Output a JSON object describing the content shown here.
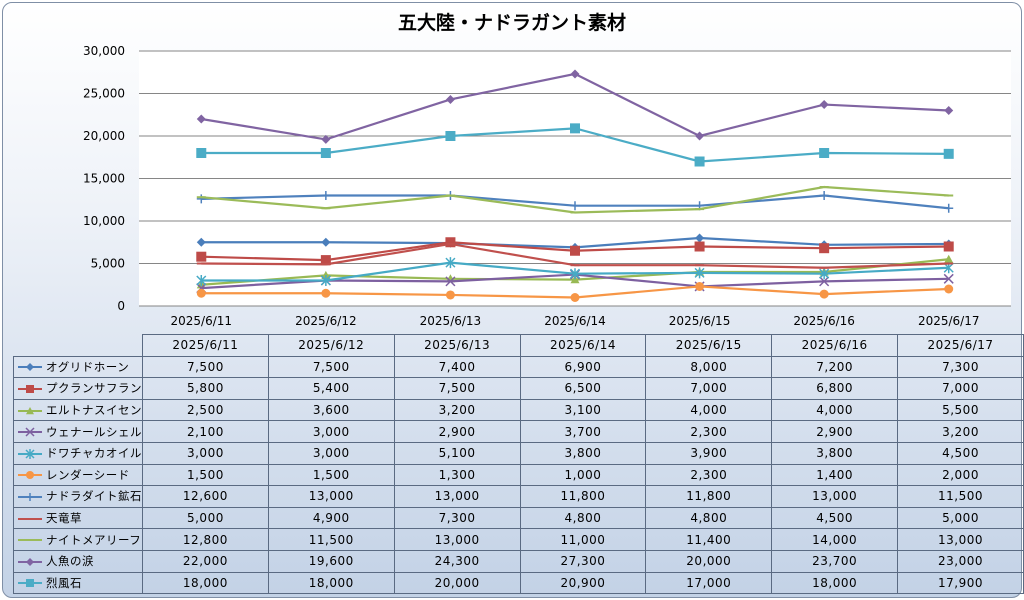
{
  "title": "五大陸・ナドラガント素材",
  "chart_data": {
    "type": "line",
    "title": "五大陸・ナドラガント素材",
    "categories": [
      "2025/6/11",
      "2025/6/12",
      "2025/6/13",
      "2025/6/14",
      "2025/6/15",
      "2025/6/16",
      "2025/6/17"
    ],
    "ylim": [
      0,
      30000
    ],
    "yticks": [
      "0",
      "5,000",
      "10,000",
      "15,000",
      "20,000",
      "25,000",
      "30,000"
    ],
    "grid": true,
    "legend": "data-table",
    "series": [
      {
        "name": "オグリドホーン",
        "color": "#4a7ebb",
        "marker": "diamond",
        "values": [
          7500,
          7500,
          7400,
          6900,
          8000,
          7200,
          7300
        ],
        "labels": [
          "7,500",
          "7,500",
          "7,400",
          "6,900",
          "8,000",
          "7,200",
          "7,300"
        ]
      },
      {
        "name": "プクランサフラン",
        "color": "#be4b48",
        "marker": "square",
        "values": [
          5800,
          5400,
          7500,
          6500,
          7000,
          6800,
          7000
        ],
        "labels": [
          "5,800",
          "5,400",
          "7,500",
          "6,500",
          "7,000",
          "6,800",
          "7,000"
        ]
      },
      {
        "name": "エルトナスイセン",
        "color": "#98b954",
        "marker": "triangle",
        "values": [
          2500,
          3600,
          3200,
          3100,
          4000,
          4000,
          5500
        ],
        "labels": [
          "2,500",
          "3,600",
          "3,200",
          "3,100",
          "4,000",
          "4,000",
          "5,500"
        ]
      },
      {
        "name": "ウェナールシェル",
        "color": "#7d60a0",
        "marker": "x",
        "values": [
          2100,
          3000,
          2900,
          3700,
          2300,
          2900,
          3200
        ],
        "labels": [
          "2,100",
          "3,000",
          "2,900",
          "3,700",
          "2,300",
          "2,900",
          "3,200"
        ]
      },
      {
        "name": "ドワチャカオイル",
        "color": "#46aac5",
        "marker": "star",
        "values": [
          3000,
          3000,
          5100,
          3800,
          3900,
          3800,
          4500
        ],
        "labels": [
          "3,000",
          "3,000",
          "5,100",
          "3,800",
          "3,900",
          "3,800",
          "4,500"
        ]
      },
      {
        "name": "レンダーシード",
        "color": "#f79646",
        "marker": "circle",
        "values": [
          1500,
          1500,
          1300,
          1000,
          2300,
          1400,
          2000
        ],
        "labels": [
          "1,500",
          "1,500",
          "1,300",
          "1,000",
          "2,300",
          "1,400",
          "2,000"
        ]
      },
      {
        "name": "ナドラダイト鉱石",
        "color": "#4f81bd",
        "marker": "plus",
        "values": [
          12600,
          13000,
          13000,
          11800,
          11800,
          13000,
          11500
        ],
        "labels": [
          "12,600",
          "13,000",
          "13,000",
          "11,800",
          "11,800",
          "13,000",
          "11,500"
        ]
      },
      {
        "name": "天竜草",
        "color": "#c0504d",
        "marker": "dash",
        "values": [
          5000,
          4900,
          7300,
          4800,
          4800,
          4500,
          5000
        ],
        "labels": [
          "5,000",
          "4,900",
          "7,300",
          "4,800",
          "4,800",
          "4,500",
          "5,000"
        ]
      },
      {
        "name": "ナイトメアリーフ",
        "color": "#9bbb59",
        "marker": "dash",
        "values": [
          12800,
          11500,
          13000,
          11000,
          11400,
          14000,
          13000
        ],
        "labels": [
          "12,800",
          "11,500",
          "13,000",
          "11,000",
          "11,400",
          "14,000",
          "13,000"
        ]
      },
      {
        "name": "人魚の涙",
        "color": "#8064a2",
        "marker": "diamond",
        "values": [
          22000,
          19600,
          24300,
          27300,
          20000,
          23700,
          23000
        ],
        "labels": [
          "22,000",
          "19,600",
          "24,300",
          "27,300",
          "20,000",
          "23,700",
          "23,000"
        ]
      },
      {
        "name": "烈風石",
        "color": "#4bacc6",
        "marker": "square",
        "values": [
          18000,
          18000,
          20000,
          20900,
          17000,
          18000,
          17900
        ],
        "labels": [
          "18,000",
          "18,000",
          "20,000",
          "20,900",
          "17,000",
          "18,000",
          "17,900"
        ]
      }
    ]
  }
}
